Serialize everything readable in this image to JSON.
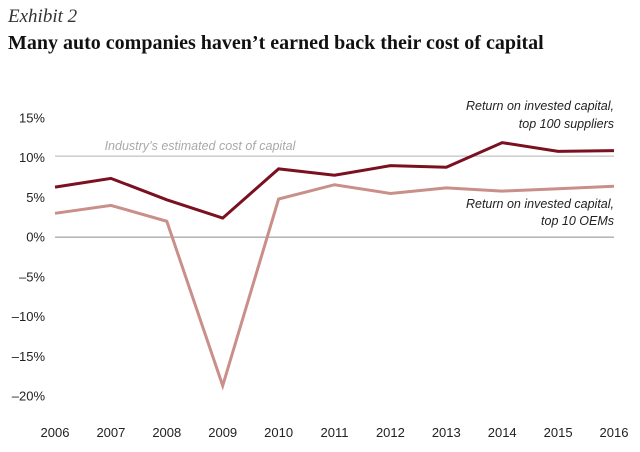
{
  "header": {
    "exhibit": "Exhibit 2",
    "title": "Many auto companies haven’t earned back their cost of capital"
  },
  "chart_data": {
    "type": "line",
    "x": [
      2006,
      2007,
      2008,
      2009,
      2010,
      2011,
      2012,
      2013,
      2014,
      2015,
      2016
    ],
    "ylim": [
      -20,
      15
    ],
    "yticks": [
      {
        "value": 15,
        "label": "15%"
      },
      {
        "value": 10,
        "label": "10%"
      },
      {
        "value": 5,
        "label": "5%"
      },
      {
        "value": 0,
        "label": "0%"
      },
      {
        "value": -5,
        "label": "–5%"
      },
      {
        "value": -10,
        "label": "–10%"
      },
      {
        "value": -15,
        "label": "–15%"
      },
      {
        "value": -20,
        "label": "–20%"
      }
    ],
    "reference_line": {
      "value": 10.2,
      "label": "Industry’s estimated cost of capital",
      "color": "#b3b3b3"
    },
    "series": [
      {
        "name_lines": [
          "Return on invested capital,",
          "top 100 suppliers"
        ],
        "color": "#7a1020",
        "values": [
          6.3,
          7.4,
          4.7,
          2.4,
          8.6,
          7.8,
          9.0,
          8.8,
          11.9,
          10.8,
          10.9
        ]
      },
      {
        "name_lines": [
          "Return on invested capital,",
          "top 10 OEMs"
        ],
        "color": "#c98f88",
        "values": [
          3.0,
          4.0,
          2.0,
          -18.7,
          4.8,
          6.6,
          5.5,
          6.2,
          5.8,
          6.1,
          6.4
        ]
      }
    ]
  }
}
